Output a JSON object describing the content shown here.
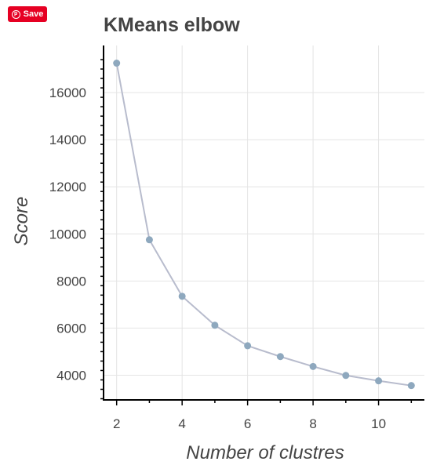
{
  "save_button": {
    "label": "Save",
    "icon": "pinterest-icon"
  },
  "chart_data": {
    "type": "line",
    "title": "KMeans elbow",
    "xlabel": "Number of clustres",
    "ylabel": "Score",
    "x": [
      2,
      3,
      4,
      5,
      6,
      7,
      8,
      9,
      10,
      11
    ],
    "series": [
      {
        "values": [
          17250,
          9750,
          7350,
          6120,
          5250,
          4790,
          4370,
          3990,
          3760,
          3560
        ],
        "color": "#8ea8be",
        "line_color": "#b8bccd"
      }
    ],
    "xticks": [
      2,
      4,
      6,
      8,
      10
    ],
    "yticks": [
      4000,
      6000,
      8000,
      10000,
      12000,
      14000,
      16000
    ],
    "xlim": [
      1.6,
      11.4
    ],
    "ylim": [
      2950,
      18000
    ],
    "grid": true
  }
}
